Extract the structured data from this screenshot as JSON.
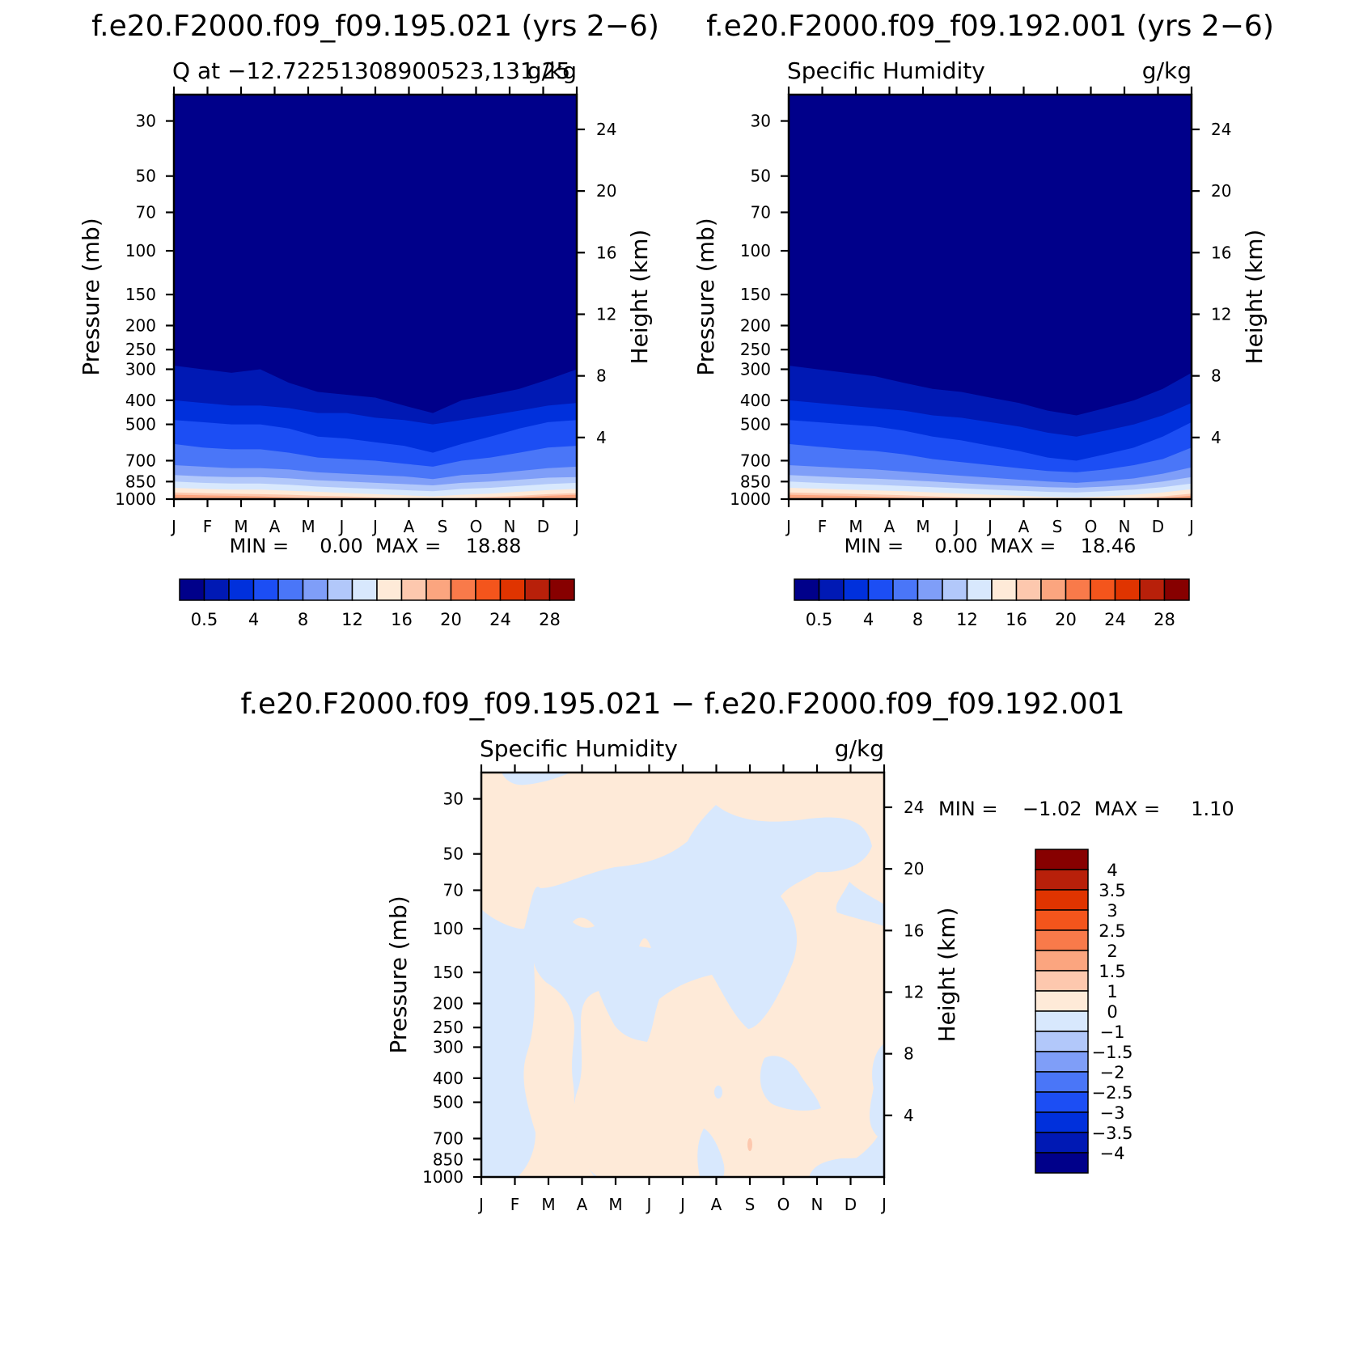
{
  "panels": [
    {
      "title": "f.e20.F2000.f09_f09.195.021 (yrs 2−6)",
      "left_label": "Q at −12.72251308900523,131.25",
      "right_label": "g/kg",
      "ylabel": "Pressure (mb)",
      "y2label": "Height (km)",
      "stats": "MIN =     0.00  MAX =    18.88"
    },
    {
      "title": "f.e20.F2000.f09_f09.192.001 (yrs 2−6)",
      "left_label": "Specific Humidity",
      "right_label": "g/kg",
      "ylabel": "Pressure (mb)",
      "y2label": "Height (km)",
      "stats": "MIN =     0.00  MAX =    18.46"
    },
    {
      "title": "f.e20.F2000.f09_f09.195.021 − f.e20.F2000.f09_f09.192.001",
      "left_label": "Specific Humidity",
      "right_label": "g/kg",
      "ylabel": "Pressure (mb)",
      "y2label": "Height (km)",
      "stats": "MIN =    −1.02  MAX =     1.10"
    }
  ],
  "chart_data": [
    {
      "type": "heatmap",
      "title": "f.e20.F2000.f09_f09.195.021 (yrs 2−6)",
      "x_ticks": [
        "J",
        "F",
        "M",
        "A",
        "M",
        "J",
        "J",
        "A",
        "S",
        "O",
        "N",
        "D",
        "J"
      ],
      "y_ticks": [
        30,
        50,
        70,
        100,
        150,
        200,
        250,
        300,
        400,
        500,
        700,
        850,
        1000
      ],
      "y2_ticks": [
        4,
        8,
        12,
        16,
        20,
        24
      ],
      "ylabel": "Pressure (mb)",
      "y2label": "Height (km)",
      "units": "g/kg",
      "min": 0.0,
      "max": 18.88,
      "colorbar_labels": [
        "0.5",
        "4",
        "8",
        "12",
        "16",
        "20",
        "24",
        "28"
      ],
      "colorbar_colors": [
        "#00008a",
        "#0019b4",
        "#0030dc",
        "#1c4ef4",
        "#4a76f8",
        "#7f9ef8",
        "#b2c8fa",
        "#d8e8fd",
        "#feead8",
        "#fdc8ae",
        "#fba57f",
        "#f97a4a",
        "#f4551c",
        "#e03400",
        "#b8200a",
        "#870000"
      ],
      "level_pressures": [
        [
          290,
          300,
          310,
          300,
          340,
          370,
          380,
          390,
          420,
          450,
          400,
          380,
          360,
          330,
          300
        ],
        [
          400,
          410,
          420,
          420,
          430,
          450,
          450,
          470,
          480,
          500,
          480,
          460,
          440,
          420,
          410
        ],
        [
          480,
          490,
          500,
          500,
          520,
          560,
          570,
          590,
          610,
          650,
          600,
          560,
          520,
          490,
          480
        ],
        [
          600,
          620,
          630,
          630,
          650,
          680,
          690,
          700,
          720,
          740,
          700,
          680,
          650,
          620,
          610
        ],
        [
          730,
          740,
          750,
          750,
          760,
          780,
          790,
          800,
          810,
          830,
          800,
          790,
          770,
          750,
          740
        ],
        [
          800,
          810,
          815,
          815,
          825,
          840,
          850,
          860,
          870,
          880,
          860,
          850,
          835,
          820,
          815
        ],
        [
          850,
          860,
          865,
          865,
          875,
          890,
          900,
          910,
          920,
          930,
          910,
          900,
          885,
          870,
          860
        ],
        [
          900,
          910,
          915,
          915,
          925,
          935,
          945,
          955,
          965,
          975,
          960,
          950,
          935,
          920,
          910
        ],
        [
          940,
          945,
          950,
          955,
          960,
          970,
          975,
          985,
          995,
          1000,
          990,
          980,
          970,
          955,
          945
        ],
        [
          960,
          965,
          970,
          975,
          985,
          1000,
          1000,
          1000,
          1000,
          1000,
          1000,
          995,
          985,
          970,
          960
        ]
      ]
    },
    {
      "type": "heatmap",
      "title": "f.e20.F2000.f09_f09.192.001 (yrs 2−6)",
      "x_ticks": [
        "J",
        "F",
        "M",
        "A",
        "M",
        "J",
        "J",
        "A",
        "S",
        "O",
        "N",
        "D",
        "J"
      ],
      "y_ticks": [
        30,
        50,
        70,
        100,
        150,
        200,
        250,
        300,
        400,
        500,
        700,
        850,
        1000
      ],
      "y2_ticks": [
        4,
        8,
        12,
        16,
        20,
        24
      ],
      "ylabel": "Pressure (mb)",
      "y2label": "Height (km)",
      "units": "g/kg",
      "min": 0.0,
      "max": 18.46,
      "colorbar_labels": [
        "0.5",
        "4",
        "8",
        "12",
        "16",
        "20",
        "24",
        "28"
      ],
      "colorbar_colors": [
        "#00008a",
        "#0019b4",
        "#0030dc",
        "#1c4ef4",
        "#4a76f8",
        "#7f9ef8",
        "#b2c8fa",
        "#d8e8fd",
        "#feead8",
        "#fdc8ae",
        "#fba57f",
        "#f97a4a",
        "#f4551c",
        "#e03400",
        "#b8200a",
        "#870000"
      ],
      "level_pressures": [
        [
          290,
          300,
          310,
          320,
          340,
          360,
          370,
          390,
          410,
          440,
          460,
          430,
          400,
          360,
          310
        ],
        [
          400,
          410,
          420,
          430,
          440,
          460,
          470,
          490,
          510,
          540,
          560,
          530,
          500,
          460,
          410
        ],
        [
          480,
          490,
          500,
          510,
          530,
          560,
          580,
          610,
          640,
          680,
          700,
          660,
          620,
          560,
          490
        ],
        [
          600,
          615,
          630,
          640,
          660,
          690,
          710,
          730,
          750,
          770,
          780,
          760,
          730,
          690,
          620
        ],
        [
          730,
          740,
          750,
          760,
          775,
          790,
          805,
          820,
          835,
          850,
          860,
          845,
          825,
          790,
          745
        ],
        [
          800,
          810,
          820,
          828,
          838,
          850,
          862,
          875,
          885,
          895,
          900,
          890,
          875,
          850,
          815
        ],
        [
          850,
          860,
          868,
          875,
          885,
          895,
          905,
          915,
          925,
          935,
          940,
          930,
          915,
          895,
          865
        ],
        [
          900,
          908,
          915,
          922,
          930,
          940,
          950,
          960,
          970,
          980,
          985,
          975,
          960,
          940,
          912
        ],
        [
          940,
          945,
          950,
          958,
          965,
          975,
          985,
          995,
          1000,
          1000,
          1000,
          1000,
          990,
          975,
          950
        ],
        [
          960,
          965,
          970,
          978,
          988,
          1000,
          1000,
          1000,
          1000,
          1000,
          1000,
          1000,
          1000,
          990,
          968
        ]
      ]
    },
    {
      "type": "heatmap",
      "title": "f.e20.F2000.f09_f09.195.021 − f.e20.F2000.f09_f09.192.001",
      "x_ticks": [
        "J",
        "F",
        "M",
        "A",
        "M",
        "J",
        "J",
        "A",
        "S",
        "O",
        "N",
        "D",
        "J"
      ],
      "y_ticks": [
        30,
        50,
        70,
        100,
        150,
        200,
        250,
        300,
        400,
        500,
        700,
        850,
        1000
      ],
      "y2_ticks": [
        4,
        8,
        12,
        16,
        20,
        24
      ],
      "ylabel": "Pressure (mb)",
      "y2label": "Height (km)",
      "units": "g/kg",
      "min": -1.02,
      "max": 1.1,
      "colorbar_labels": [
        "4",
        "3.5",
        "3",
        "2.5",
        "2",
        "1.5",
        "1",
        "0",
        "−1",
        "−1.5",
        "−2",
        "−2.5",
        "−3",
        "−3.5",
        "−4"
      ],
      "colorbar_colors": [
        "#870000",
        "#b8200a",
        "#e03400",
        "#f4551c",
        "#f97a4a",
        "#fba57f",
        "#fdc8ae",
        "#feead8",
        "#d8e8fd",
        "#b2c8fa",
        "#7f9ef8",
        "#4a76f8",
        "#1c4ef4",
        "#0030dc",
        "#0019b4",
        "#00008a"
      ]
    }
  ]
}
